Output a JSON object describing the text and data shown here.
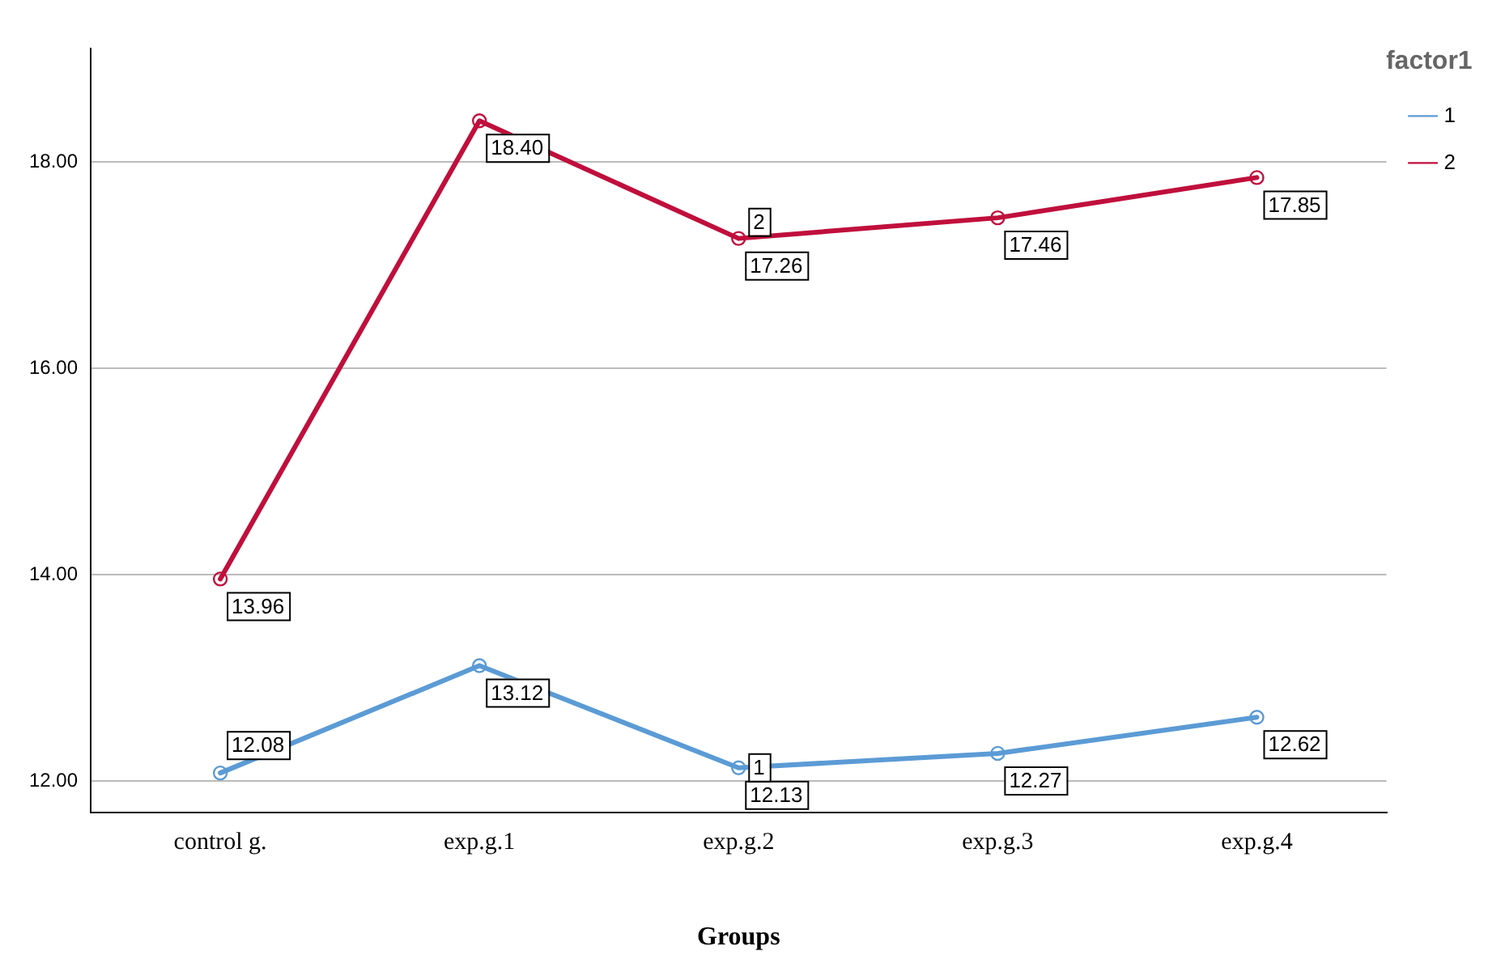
{
  "chart_data": {
    "type": "line",
    "xlabel": "Groups",
    "legend_title": "factor1",
    "categories": [
      "control g.",
      "exp.g.1",
      "exp.g.2",
      "exp.g.3",
      "exp.g.4"
    ],
    "series": [
      {
        "name": "1",
        "color": "#5b9bd5",
        "values": [
          12.08,
          13.12,
          12.13,
          12.27,
          12.62
        ],
        "value_labels": [
          "12.08",
          "13.12",
          "12.13",
          "12.27",
          "12.62"
        ]
      },
      {
        "name": "2",
        "color": "#c00f3c",
        "values": [
          13.96,
          18.4,
          17.26,
          17.46,
          17.85
        ],
        "value_labels": [
          "13.96",
          "18.40",
          "17.26",
          "17.46",
          "17.85"
        ]
      }
    ],
    "ylim": [
      11.7,
      19.1
    ],
    "yticks": [
      {
        "value": 12,
        "label": "12.00"
      },
      {
        "value": 14,
        "label": "14.00"
      },
      {
        "value": 16,
        "label": "16.00"
      },
      {
        "value": 18,
        "label": "18.00"
      }
    ],
    "grid": "y",
    "legend": "top right",
    "marker": "circle",
    "line_style": "solid"
  }
}
